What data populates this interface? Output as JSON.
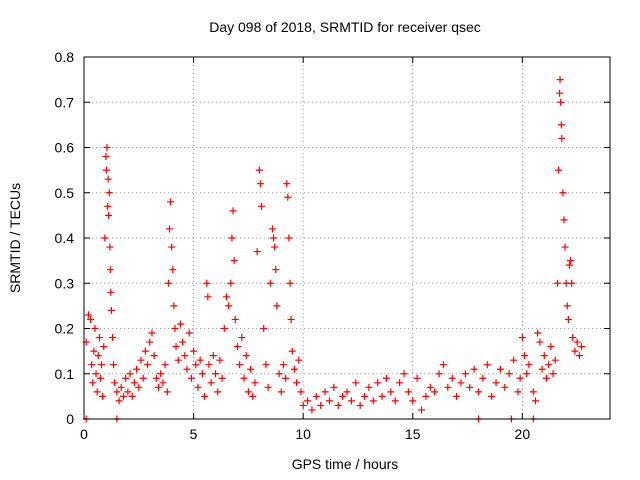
{
  "chart_data": {
    "type": "scatter",
    "title": "Day 098 of 2018, SRMTID for receiver qsec",
    "xlabel": "GPS time / hours",
    "ylabel": "SRMTID / TECUs",
    "xlim": [
      0,
      24
    ],
    "ylim": [
      0,
      0.8
    ],
    "xticks": [
      "0",
      "5",
      "10",
      "15",
      "20"
    ],
    "yticks": [
      "0",
      "0.1",
      "0.2",
      "0.3",
      "0.4",
      "0.5",
      "0.6",
      "0.7",
      "0.8"
    ],
    "grid": true,
    "marker": "plus",
    "color": "#ff0000",
    "series": [
      {
        "name": "SRMTID",
        "points": [
          [
            0.1,
            0.17
          ],
          [
            0.2,
            0.23
          ],
          [
            0.3,
            0.22
          ],
          [
            0.35,
            0.12
          ],
          [
            0.4,
            0.08
          ],
          [
            0.45,
            0.15
          ],
          [
            0.5,
            0.2
          ],
          [
            0.55,
            0.1
          ],
          [
            0.6,
            0.06
          ],
          [
            0.65,
            0.14
          ],
          [
            0.7,
            0.18
          ],
          [
            0.75,
            0.09
          ],
          [
            0.8,
            0.12
          ],
          [
            0.85,
            0.05
          ],
          [
            0.9,
            0.16
          ],
          [
            0.95,
            0.4
          ],
          [
            1.0,
            0.58
          ],
          [
            1.02,
            0.55
          ],
          [
            1.05,
            0.6
          ],
          [
            1.08,
            0.47
          ],
          [
            1.1,
            0.53
          ],
          [
            1.12,
            0.45
          ],
          [
            1.15,
            0.5
          ],
          [
            1.18,
            0.38
          ],
          [
            1.2,
            0.33
          ],
          [
            1.22,
            0.28
          ],
          [
            1.25,
            0.24
          ],
          [
            1.3,
            0.18
          ],
          [
            1.35,
            0.12
          ],
          [
            1.4,
            0.08
          ],
          [
            1.5,
            0.06
          ],
          [
            1.6,
            0.04
          ],
          [
            1.7,
            0.07
          ],
          [
            1.8,
            0.05
          ],
          [
            1.9,
            0.09
          ],
          [
            2.0,
            0.06
          ],
          [
            2.1,
            0.1
          ],
          [
            2.2,
            0.05
          ],
          [
            2.3,
            0.08
          ],
          [
            2.4,
            0.11
          ],
          [
            2.5,
            0.07
          ],
          [
            2.6,
            0.13
          ],
          [
            2.7,
            0.09
          ],
          [
            2.8,
            0.15
          ],
          [
            2.9,
            0.12
          ],
          [
            3.0,
            0.17
          ],
          [
            3.1,
            0.19
          ],
          [
            3.2,
            0.14
          ],
          [
            3.3,
            0.09
          ],
          [
            3.4,
            0.07
          ],
          [
            3.5,
            0.1
          ],
          [
            3.6,
            0.08
          ],
          [
            3.7,
            0.12
          ],
          [
            3.8,
            0.06
          ],
          [
            3.85,
            0.3
          ],
          [
            3.9,
            0.42
          ],
          [
            3.95,
            0.48
          ],
          [
            4.0,
            0.38
          ],
          [
            4.05,
            0.33
          ],
          [
            4.1,
            0.25
          ],
          [
            4.15,
            0.2
          ],
          [
            4.2,
            0.16
          ],
          [
            4.3,
            0.13
          ],
          [
            4.4,
            0.21
          ],
          [
            4.5,
            0.17
          ],
          [
            4.6,
            0.14
          ],
          [
            4.7,
            0.11
          ],
          [
            4.8,
            0.19
          ],
          [
            4.9,
            0.09
          ],
          [
            5.0,
            0.15
          ],
          [
            5.1,
            0.12
          ],
          [
            5.2,
            0.07
          ],
          [
            5.3,
            0.13
          ],
          [
            5.4,
            0.1
          ],
          [
            5.5,
            0.05
          ],
          [
            5.6,
            0.3
          ],
          [
            5.65,
            0.27
          ],
          [
            5.7,
            0.12
          ],
          [
            5.8,
            0.08
          ],
          [
            5.9,
            0.14
          ],
          [
            6.0,
            0.1
          ],
          [
            6.1,
            0.06
          ],
          [
            6.2,
            0.13
          ],
          [
            6.3,
            0.09
          ],
          [
            6.4,
            0.2
          ],
          [
            6.5,
            0.27
          ],
          [
            6.6,
            0.25
          ],
          [
            6.7,
            0.3
          ],
          [
            6.75,
            0.4
          ],
          [
            6.8,
            0.46
          ],
          [
            6.85,
            0.35
          ],
          [
            6.9,
            0.22
          ],
          [
            7.0,
            0.16
          ],
          [
            7.1,
            0.12
          ],
          [
            7.2,
            0.18
          ],
          [
            7.3,
            0.09
          ],
          [
            7.4,
            0.14
          ],
          [
            7.5,
            0.06
          ],
          [
            7.6,
            0.11
          ],
          [
            7.7,
            0.05
          ],
          [
            7.8,
            0.08
          ],
          [
            7.9,
            0.37
          ],
          [
            8.0,
            0.55
          ],
          [
            8.05,
            0.52
          ],
          [
            8.1,
            0.47
          ],
          [
            8.2,
            0.2
          ],
          [
            8.3,
            0.12
          ],
          [
            8.4,
            0.07
          ],
          [
            8.5,
            0.3
          ],
          [
            8.6,
            0.42
          ],
          [
            8.65,
            0.4
          ],
          [
            8.7,
            0.38
          ],
          [
            8.75,
            0.33
          ],
          [
            8.8,
            0.25
          ],
          [
            8.9,
            0.1
          ],
          [
            9.0,
            0.06
          ],
          [
            9.1,
            0.12
          ],
          [
            9.2,
            0.09
          ],
          [
            9.25,
            0.52
          ],
          [
            9.3,
            0.49
          ],
          [
            9.35,
            0.4
          ],
          [
            9.4,
            0.3
          ],
          [
            9.45,
            0.22
          ],
          [
            9.5,
            0.15
          ],
          [
            9.6,
            0.11
          ],
          [
            9.7,
            0.08
          ],
          [
            9.8,
            0.13
          ],
          [
            9.9,
            0.06
          ],
          [
            10.0,
            0.03
          ],
          [
            10.2,
            0.04
          ],
          [
            10.4,
            0.02
          ],
          [
            10.6,
            0.05
          ],
          [
            10.8,
            0.03
          ],
          [
            11.0,
            0.06
          ],
          [
            11.2,
            0.04
          ],
          [
            11.4,
            0.07
          ],
          [
            11.6,
            0.03
          ],
          [
            11.8,
            0.05
          ],
          [
            12.0,
            0.06
          ],
          [
            12.2,
            0.04
          ],
          [
            12.4,
            0.08
          ],
          [
            12.6,
            0.03
          ],
          [
            12.8,
            0.05
          ],
          [
            13.0,
            0.07
          ],
          [
            13.2,
            0.04
          ],
          [
            13.4,
            0.08
          ],
          [
            13.6,
            0.05
          ],
          [
            13.8,
            0.09
          ],
          [
            14.0,
            0.06
          ],
          [
            14.2,
            0.04
          ],
          [
            14.4,
            0.08
          ],
          [
            14.6,
            0.1
          ],
          [
            14.8,
            0.06
          ],
          [
            15.0,
            0.04
          ],
          [
            15.2,
            0.09
          ],
          [
            15.4,
            0.02
          ],
          [
            15.6,
            0.05
          ],
          [
            15.8,
            0.07
          ],
          [
            16.0,
            0.06
          ],
          [
            16.2,
            0.1
          ],
          [
            16.4,
            0.12
          ],
          [
            16.6,
            0.07
          ],
          [
            16.8,
            0.09
          ],
          [
            17.0,
            0.05
          ],
          [
            17.2,
            0.08
          ],
          [
            17.4,
            0.1
          ],
          [
            17.6,
            0.07
          ],
          [
            17.8,
            0.11
          ],
          [
            18.0,
            0.06
          ],
          [
            18.2,
            0.09
          ],
          [
            18.4,
            0.12
          ],
          [
            18.6,
            0.05
          ],
          [
            18.8,
            0.08
          ],
          [
            19.0,
            0.11
          ],
          [
            19.2,
            0.07
          ],
          [
            19.4,
            0.1
          ],
          [
            19.6,
            0.13
          ],
          [
            19.8,
            0.06
          ],
          [
            19.9,
            0.09
          ],
          [
            20.0,
            0.18
          ],
          [
            20.1,
            0.14
          ],
          [
            20.2,
            0.1
          ],
          [
            20.3,
            0.12
          ],
          [
            20.5,
            0.06
          ],
          [
            20.6,
            0.04
          ],
          [
            20.7,
            0.19
          ],
          [
            20.8,
            0.17
          ],
          [
            20.9,
            0.11
          ],
          [
            21.0,
            0.14
          ],
          [
            21.1,
            0.09
          ],
          [
            21.2,
            0.12
          ],
          [
            21.3,
            0.16
          ],
          [
            21.4,
            0.1
          ],
          [
            21.5,
            0.13
          ],
          [
            21.6,
            0.3
          ],
          [
            21.65,
            0.55
          ],
          [
            21.7,
            0.72
          ],
          [
            21.72,
            0.75
          ],
          [
            21.75,
            0.7
          ],
          [
            21.78,
            0.65
          ],
          [
            21.8,
            0.62
          ],
          [
            21.85,
            0.5
          ],
          [
            21.9,
            0.44
          ],
          [
            21.95,
            0.38
          ],
          [
            22.0,
            0.3
          ],
          [
            22.05,
            0.25
          ],
          [
            22.1,
            0.22
          ],
          [
            22.15,
            0.34
          ],
          [
            22.2,
            0.35
          ],
          [
            22.25,
            0.3
          ],
          [
            22.3,
            0.18
          ],
          [
            22.4,
            0.15
          ],
          [
            22.5,
            0.17
          ],
          [
            22.6,
            0.14
          ],
          [
            22.7,
            0.16
          ],
          [
            0.1,
            0.0
          ],
          [
            1.5,
            0.0
          ],
          [
            18.0,
            0.0
          ],
          [
            19.5,
            0.0
          ],
          [
            20.5,
            0.0
          ]
        ]
      }
    ]
  }
}
